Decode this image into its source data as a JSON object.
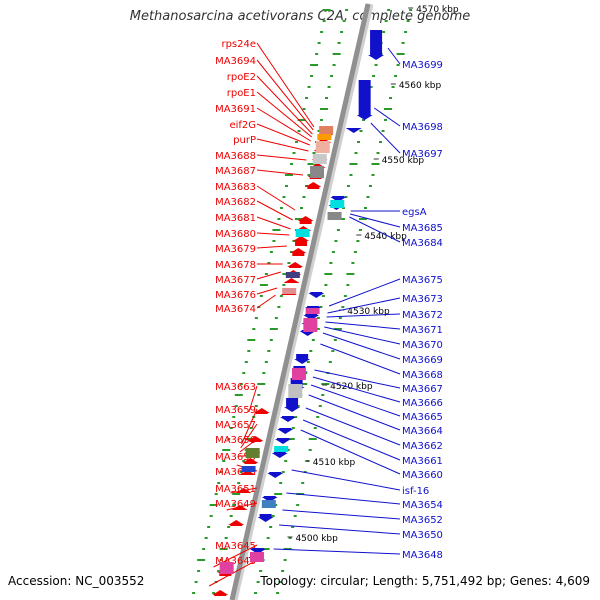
{
  "title": "Methanosarcina acetivorans C2A, complete genome",
  "accession": "Accession: NC_003552",
  "topology": "Topology: circular; Length: 5,751,492 bp; Genes: 4,609",
  "colors": {
    "forward": "#ee0000",
    "reverse": "#1111cc",
    "axis": "#909090",
    "tick": "#2a9a2a"
  },
  "scale_labels": [
    {
      "text": "4570 kbp",
      "kbp": 4570
    },
    {
      "text": "4560 kbp",
      "kbp": 4560
    },
    {
      "text": "4550 kbp",
      "kbp": 4550
    },
    {
      "text": "4540 kbp",
      "kbp": 4540
    },
    {
      "text": "4530 kbp",
      "kbp": 4530
    },
    {
      "text": "4520 kbp",
      "kbp": 4520
    },
    {
      "text": "4510 kbp",
      "kbp": 4510
    },
    {
      "text": "4500 kbp",
      "kbp": 4500
    }
  ],
  "forward_genes": [
    "rps24e",
    "MA3694",
    "rpoE2",
    "rpoE1",
    "MA3691",
    "eif2G",
    "purP",
    "MA3688",
    "MA3687",
    "MA3683",
    "MA3682",
    "MA3681",
    "MA3680",
    "MA3679",
    "MA3678",
    "MA3677",
    "MA3676",
    "MA3674",
    "MA3663",
    "MA3659",
    "MA3657",
    "MA3656",
    "MA3655",
    "MA3653",
    "MA3651",
    "MA3649",
    "MA3645",
    "MA3643"
  ],
  "reverse_genes": [
    "MA3699",
    "MA3698",
    "MA3697",
    "egsA",
    "MA3685",
    "MA3684",
    "MA3675",
    "MA3673",
    "MA3672",
    "MA3671",
    "MA3670",
    "MA3669",
    "MA3668",
    "MA3667",
    "MA3666",
    "MA3665",
    "MA3664",
    "MA3662",
    "MA3661",
    "MA3660",
    "isf-16",
    "MA3654",
    "MA3652",
    "MA3650",
    "MA3648"
  ]
}
